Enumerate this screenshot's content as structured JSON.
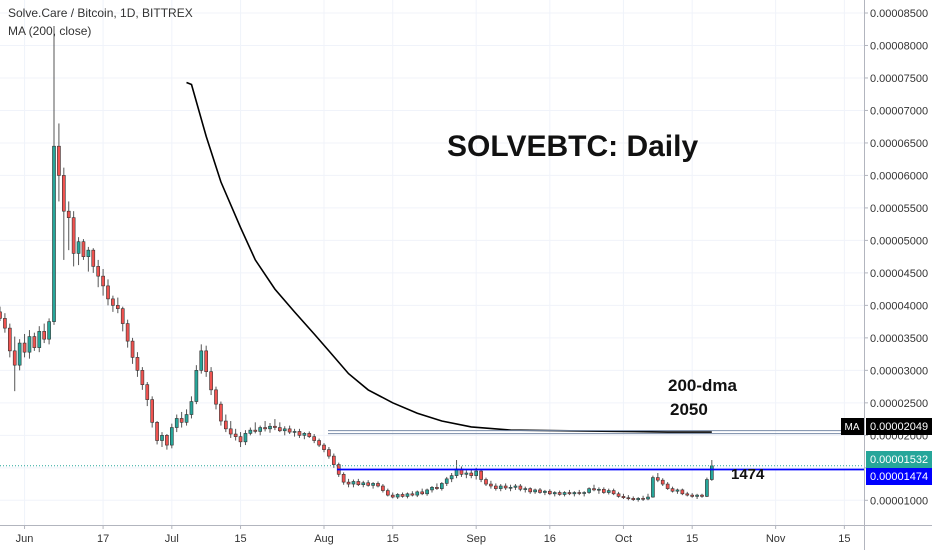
{
  "header": {
    "symbol": "Solve.Care / Bitcoin, 1D, BITTREX",
    "indicator": "MA (200, close)"
  },
  "annotations": {
    "title": "SOLVEBTC: Daily",
    "ma_label": "200-dma",
    "ma_value": "2050",
    "support_value": "1474"
  },
  "axis_badges": {
    "ma_tag": "MA",
    "ma_price": "0.00002049",
    "last_price": "0.00001532",
    "support_price": "0.00001474"
  },
  "colors": {
    "up": "#26a69a",
    "down": "#ef5350",
    "ma": "#000000",
    "support": "#0000ff",
    "grid": "#f0f3fa",
    "axis_text": "#333333"
  },
  "chart_data": {
    "type": "candlestick",
    "title": "SOLVEBTC: Daily",
    "x_ticks": [
      "Jun",
      "17",
      "Jul",
      "15",
      "Aug",
      "15",
      "Sep",
      "16",
      "Oct",
      "15",
      "Nov",
      "15"
    ],
    "y_ticks": [
      "0.00001000",
      "0.00001500",
      "0.00002000",
      "0.00002500",
      "0.00003000",
      "0.00003500",
      "0.00004000",
      "0.00004500",
      "0.00005000",
      "0.00005500",
      "0.00006000",
      "0.00006500",
      "0.00007000",
      "0.00007500",
      "0.00008000",
      "0.00008500"
    ],
    "ylim": [
      6.2e-06,
      8.7e-05
    ],
    "x_range": [
      "2019-05-27",
      "2019-11-19"
    ],
    "support_level": 1.474e-05,
    "ma_level": 2.049e-05,
    "last_price": 1.532e-05,
    "ma200": [
      [
        "2019-07-04",
        7.43e-05
      ],
      [
        "2019-07-05",
        7.4e-05
      ],
      [
        "2019-07-08",
        6.6e-05
      ],
      [
        "2019-07-11",
        5.9e-05
      ],
      [
        "2019-07-15",
        5.2e-05
      ],
      [
        "2019-07-18",
        4.7e-05
      ],
      [
        "2019-07-22",
        4.25e-05
      ],
      [
        "2019-07-26",
        3.9e-05
      ],
      [
        "2019-07-30",
        3.56e-05
      ],
      [
        "2019-08-02",
        3.3e-05
      ],
      [
        "2019-08-06",
        2.95e-05
      ],
      [
        "2019-08-10",
        2.7e-05
      ],
      [
        "2019-08-15",
        2.5e-05
      ],
      [
        "2019-08-20",
        2.34e-05
      ],
      [
        "2019-08-25",
        2.22e-05
      ],
      [
        "2019-08-31",
        2.13e-05
      ],
      [
        "2019-09-08",
        2.08e-05
      ],
      [
        "2019-09-20",
        2.07e-05
      ],
      [
        "2019-10-01",
        2.06e-05
      ],
      [
        "2019-10-10",
        2.05e-05
      ],
      [
        "2019-10-19",
        2.05e-05
      ]
    ],
    "candles_desc": "date, open, high, low, close",
    "candles": [
      [
        "2019-05-27",
        3.9e-05,
        3.98e-05,
        3.76e-05,
        3.8e-05
      ],
      [
        "2019-05-28",
        3.8e-05,
        3.88e-05,
        3.58e-05,
        3.65e-05
      ],
      [
        "2019-05-29",
        3.65e-05,
        3.72e-05,
        3.2e-05,
        3.3e-05
      ],
      [
        "2019-05-30",
        3.3e-05,
        3.52e-05,
        2.68e-05,
        3.08e-05
      ],
      [
        "2019-05-31",
        3.08e-05,
        3.48e-05,
        3e-05,
        3.42e-05
      ],
      [
        "2019-06-01",
        3.42e-05,
        3.56e-05,
        3.2e-05,
        3.28e-05
      ],
      [
        "2019-06-02",
        3.28e-05,
        3.62e-05,
        3.18e-05,
        3.52e-05
      ],
      [
        "2019-06-03",
        3.52e-05,
        3.58e-05,
        3.3e-05,
        3.35e-05
      ],
      [
        "2019-06-04",
        3.35e-05,
        3.68e-05,
        3.28e-05,
        3.6e-05
      ],
      [
        "2019-06-05",
        3.6e-05,
        3.72e-05,
        3.42e-05,
        3.48e-05
      ],
      [
        "2019-06-06",
        3.48e-05,
        3.8e-05,
        3.4e-05,
        3.75e-05
      ],
      [
        "2019-06-07",
        3.75e-05,
        8.3e-05,
        3.7e-05,
        6.45e-05
      ],
      [
        "2019-06-08",
        6.45e-05,
        6.8e-05,
        5.6e-05,
        6e-05
      ],
      [
        "2019-06-09",
        6e-05,
        6.12e-05,
        4.7e-05,
        5.45e-05
      ],
      [
        "2019-06-10",
        5.45e-05,
        5.6e-05,
        4.85e-05,
        5.35e-05
      ],
      [
        "2019-06-11",
        5.35e-05,
        5.45e-05,
        4.6e-05,
        4.8e-05
      ],
      [
        "2019-06-12",
        4.8e-05,
        5.05e-05,
        4.62e-05,
        4.98e-05
      ],
      [
        "2019-06-13",
        4.98e-05,
        5.02e-05,
        4.7e-05,
        4.75e-05
      ],
      [
        "2019-06-14",
        4.75e-05,
        4.9e-05,
        4.52e-05,
        4.85e-05
      ],
      [
        "2019-06-15",
        4.85e-05,
        4.88e-05,
        4.5e-05,
        4.6e-05
      ],
      [
        "2019-06-16",
        4.6e-05,
        4.7e-05,
        4.28e-05,
        4.45e-05
      ],
      [
        "2019-06-17",
        4.45e-05,
        4.56e-05,
        4.15e-05,
        4.3e-05
      ],
      [
        "2019-06-18",
        4.3e-05,
        4.4e-05,
        4e-05,
        4.1e-05
      ],
      [
        "2019-06-19",
        4.1e-05,
        4.15e-05,
        3.9e-05,
        4e-05
      ],
      [
        "2019-06-20",
        4e-05,
        4.12e-05,
        3.88e-05,
        3.95e-05
      ],
      [
        "2019-06-21",
        3.95e-05,
        3.98e-05,
        3.6e-05,
        3.72e-05
      ],
      [
        "2019-06-22",
        3.72e-05,
        3.78e-05,
        3.35e-05,
        3.45e-05
      ],
      [
        "2019-06-23",
        3.45e-05,
        3.5e-05,
        3.1e-05,
        3.2e-05
      ],
      [
        "2019-06-24",
        3.2e-05,
        3.28e-05,
        2.9e-05,
        3e-05
      ],
      [
        "2019-06-25",
        3e-05,
        3.05e-05,
        2.7e-05,
        2.78e-05
      ],
      [
        "2019-06-26",
        2.78e-05,
        2.82e-05,
        2.45e-05,
        2.55e-05
      ],
      [
        "2019-06-27",
        2.55e-05,
        2.6e-05,
        2.12e-05,
        2.2e-05
      ],
      [
        "2019-06-28",
        2.2e-05,
        2.22e-05,
        1.86e-05,
        1.92e-05
      ],
      [
        "2019-06-29",
        1.92e-05,
        2.05e-05,
        1.82e-05,
        2e-05
      ],
      [
        "2019-06-30",
        2e-05,
        2.02e-05,
        1.78e-05,
        1.85e-05
      ],
      [
        "2019-07-01",
        1.85e-05,
        2.18e-05,
        1.8e-05,
        2.12e-05
      ],
      [
        "2019-07-02",
        2.12e-05,
        2.32e-05,
        2.05e-05,
        2.26e-05
      ],
      [
        "2019-07-03",
        2.26e-05,
        2.36e-05,
        2.12e-05,
        2.2e-05
      ],
      [
        "2019-07-04",
        2.2e-05,
        2.4e-05,
        2.15e-05,
        2.32e-05
      ],
      [
        "2019-07-05",
        2.32e-05,
        2.6e-05,
        2.26e-05,
        2.52e-05
      ],
      [
        "2019-07-06",
        2.52e-05,
        3.08e-05,
        2.48e-05,
        3e-05
      ],
      [
        "2019-07-07",
        3e-05,
        3.4e-05,
        2.95e-05,
        3.3e-05
      ],
      [
        "2019-07-08",
        3.3e-05,
        3.38e-05,
        2.9e-05,
        2.98e-05
      ],
      [
        "2019-07-09",
        2.98e-05,
        3.05e-05,
        2.62e-05,
        2.7e-05
      ],
      [
        "2019-07-10",
        2.7e-05,
        2.75e-05,
        2.4e-05,
        2.48e-05
      ],
      [
        "2019-07-11",
        2.48e-05,
        2.52e-05,
        2.15e-05,
        2.22e-05
      ],
      [
        "2019-07-12",
        2.22e-05,
        2.32e-05,
        2.05e-05,
        2.1e-05
      ],
      [
        "2019-07-13",
        2.1e-05,
        2.22e-05,
        1.96e-05,
        2.02e-05
      ],
      [
        "2019-07-14",
        2.02e-05,
        2.1e-05,
        1.92e-05,
        1.98e-05
      ],
      [
        "2019-07-15",
        1.98e-05,
        2.05e-05,
        1.82e-05,
        1.9e-05
      ],
      [
        "2019-07-16",
        1.9e-05,
        2.08e-05,
        1.85e-05,
        2.03e-05
      ],
      [
        "2019-07-17",
        2.03e-05,
        2.12e-05,
        2e-05,
        2.08e-05
      ],
      [
        "2019-07-18",
        2.08e-05,
        2.2e-05,
        2.03e-05,
        2.06e-05
      ],
      [
        "2019-07-19",
        2.06e-05,
        2.15e-05,
        2e-05,
        2.12e-05
      ],
      [
        "2019-07-20",
        2.12e-05,
        2.22e-05,
        2.06e-05,
        2.1e-05
      ],
      [
        "2019-07-21",
        2.1e-05,
        2.19e-05,
        2.04e-05,
        2.14e-05
      ],
      [
        "2019-07-22",
        2.14e-05,
        2.25e-05,
        2.08e-05,
        2.12e-05
      ],
      [
        "2019-07-23",
        2.12e-05,
        2.2e-05,
        2.05e-05,
        2.07e-05
      ],
      [
        "2019-07-24",
        2.07e-05,
        2.14e-05,
        2e-05,
        2.1e-05
      ],
      [
        "2019-07-25",
        2.1e-05,
        2.15e-05,
        2.02e-05,
        2.05e-05
      ],
      [
        "2019-07-26",
        2.05e-05,
        2.1e-05,
        1.98e-05,
        2.06e-05
      ],
      [
        "2019-07-27",
        2.06e-05,
        2.1e-05,
        1.96e-05,
        2e-05
      ],
      [
        "2019-07-28",
        2e-05,
        2.05e-05,
        1.94e-05,
        2.03e-05
      ],
      [
        "2019-07-29",
        2.03e-05,
        2.06e-05,
        1.96e-05,
        1.98e-05
      ],
      [
        "2019-07-30",
        1.98e-05,
        2.02e-05,
        1.88e-05,
        1.92e-05
      ],
      [
        "2019-07-31",
        1.92e-05,
        1.95e-05,
        1.82e-05,
        1.85e-05
      ],
      [
        "2019-08-01",
        1.85e-05,
        1.88e-05,
        1.74e-05,
        1.78e-05
      ],
      [
        "2019-08-02",
        1.78e-05,
        1.82e-05,
        1.64e-05,
        1.68e-05
      ],
      [
        "2019-08-03",
        1.68e-05,
        1.72e-05,
        1.5e-05,
        1.55e-05
      ],
      [
        "2019-08-04",
        1.55e-05,
        1.58e-05,
        1.36e-05,
        1.4e-05
      ],
      [
        "2019-08-05",
        1.4e-05,
        1.43e-05,
        1.24e-05,
        1.28e-05
      ],
      [
        "2019-08-06",
        1.28e-05,
        1.33e-05,
        1.2e-05,
        1.25e-05
      ],
      [
        "2019-08-07",
        1.25e-05,
        1.32e-05,
        1.2e-05,
        1.29e-05
      ],
      [
        "2019-08-08",
        1.29e-05,
        1.33e-05,
        1.22e-05,
        1.24e-05
      ],
      [
        "2019-08-09",
        1.24e-05,
        1.3e-05,
        1.2e-05,
        1.27e-05
      ],
      [
        "2019-08-10",
        1.27e-05,
        1.31e-05,
        1.21e-05,
        1.23e-05
      ],
      [
        "2019-08-11",
        1.23e-05,
        1.28e-05,
        1.18e-05,
        1.26e-05
      ],
      [
        "2019-08-12",
        1.26e-05,
        1.29e-05,
        1.2e-05,
        1.22e-05
      ],
      [
        "2019-08-13",
        1.22e-05,
        1.25e-05,
        1.12e-05,
        1.15e-05
      ],
      [
        "2019-08-14",
        1.15e-05,
        1.18e-05,
        1.06e-05,
        1.08e-05
      ],
      [
        "2019-08-15",
        1.08e-05,
        1.12e-05,
        1.03e-05,
        1.05e-05
      ],
      [
        "2019-08-16",
        1.05e-05,
        1.11e-05,
        1.02e-05,
        1.09e-05
      ],
      [
        "2019-08-17",
        1.09e-05,
        1.12e-05,
        1.04e-05,
        1.06e-05
      ],
      [
        "2019-08-18",
        1.06e-05,
        1.12e-05,
        1.03e-05,
        1.1e-05
      ],
      [
        "2019-08-19",
        1.1e-05,
        1.14e-05,
        1.06e-05,
        1.08e-05
      ],
      [
        "2019-08-20",
        1.08e-05,
        1.15e-05,
        1.05e-05,
        1.13e-05
      ],
      [
        "2019-08-21",
        1.13e-05,
        1.18e-05,
        1.08e-05,
        1.1e-05
      ],
      [
        "2019-08-22",
        1.1e-05,
        1.18e-05,
        1.07e-05,
        1.16e-05
      ],
      [
        "2019-08-23",
        1.16e-05,
        1.22e-05,
        1.12e-05,
        1.2e-05
      ],
      [
        "2019-08-24",
        1.2e-05,
        1.26e-05,
        1.16e-05,
        1.18e-05
      ],
      [
        "2019-08-25",
        1.18e-05,
        1.28e-05,
        1.15e-05,
        1.26e-05
      ],
      [
        "2019-08-26",
        1.26e-05,
        1.36e-05,
        1.22e-05,
        1.33e-05
      ],
      [
        "2019-08-27",
        1.33e-05,
        1.42e-05,
        1.28e-05,
        1.38e-05
      ],
      [
        "2019-08-28",
        1.38e-05,
        1.62e-05,
        1.34e-05,
        1.48e-05
      ],
      [
        "2019-08-29",
        1.48e-05,
        1.52e-05,
        1.36e-05,
        1.4e-05
      ],
      [
        "2019-08-30",
        1.4e-05,
        1.46e-05,
        1.34e-05,
        1.42e-05
      ],
      [
        "2019-08-31",
        1.42e-05,
        1.48e-05,
        1.34e-05,
        1.38e-05
      ],
      [
        "2019-09-01",
        1.38e-05,
        1.5e-05,
        1.32e-05,
        1.45e-05
      ],
      [
        "2019-09-02",
        1.45e-05,
        1.47e-05,
        1.28e-05,
        1.32e-05
      ],
      [
        "2019-09-03",
        1.32e-05,
        1.35e-05,
        1.22e-05,
        1.25e-05
      ],
      [
        "2019-09-04",
        1.25e-05,
        1.3e-05,
        1.18e-05,
        1.22e-05
      ],
      [
        "2019-09-05",
        1.22e-05,
        1.26e-05,
        1.15e-05,
        1.18e-05
      ],
      [
        "2019-09-06",
        1.18e-05,
        1.25e-05,
        1.14e-05,
        1.22e-05
      ],
      [
        "2019-09-07",
        1.22e-05,
        1.26e-05,
        1.16e-05,
        1.19e-05
      ],
      [
        "2019-09-08",
        1.19e-05,
        1.24e-05,
        1.14e-05,
        1.2e-05
      ],
      [
        "2019-09-09",
        1.2e-05,
        1.25e-05,
        1.16e-05,
        1.22e-05
      ],
      [
        "2019-09-10",
        1.22e-05,
        1.25e-05,
        1.14e-05,
        1.17e-05
      ],
      [
        "2019-09-11",
        1.17e-05,
        1.21e-05,
        1.12e-05,
        1.18e-05
      ],
      [
        "2019-09-12",
        1.18e-05,
        1.2e-05,
        1.1e-05,
        1.13e-05
      ],
      [
        "2019-09-13",
        1.13e-05,
        1.18e-05,
        1.1e-05,
        1.16e-05
      ],
      [
        "2019-09-14",
        1.16e-05,
        1.19e-05,
        1.1e-05,
        1.12e-05
      ],
      [
        "2019-09-15",
        1.12e-05,
        1.16e-05,
        1.08e-05,
        1.14e-05
      ],
      [
        "2019-09-16",
        1.14e-05,
        1.17e-05,
        1.08e-05,
        1.1e-05
      ],
      [
        "2019-09-17",
        1.1e-05,
        1.14e-05,
        1.06e-05,
        1.12e-05
      ],
      [
        "2019-09-18",
        1.12e-05,
        1.15e-05,
        1.07e-05,
        1.09e-05
      ],
      [
        "2019-09-19",
        1.09e-05,
        1.14e-05,
        1.06e-05,
        1.12e-05
      ],
      [
        "2019-09-20",
        1.12e-05,
        1.16e-05,
        1.08e-05,
        1.1e-05
      ],
      [
        "2019-09-21",
        1.1e-05,
        1.14e-05,
        1.06e-05,
        1.12e-05
      ],
      [
        "2019-09-22",
        1.12e-05,
        1.16e-05,
        1.08e-05,
        1.11e-05
      ],
      [
        "2019-09-23",
        1.11e-05,
        1.14e-05,
        1.06e-05,
        1.12e-05
      ],
      [
        "2019-09-24",
        1.12e-05,
        1.2e-05,
        1.1e-05,
        1.18e-05
      ],
      [
        "2019-09-25",
        1.18e-05,
        1.24e-05,
        1.14e-05,
        1.16e-05
      ],
      [
        "2019-09-26",
        1.16e-05,
        1.2e-05,
        1.1e-05,
        1.17e-05
      ],
      [
        "2019-09-27",
        1.17e-05,
        1.2e-05,
        1.1e-05,
        1.12e-05
      ],
      [
        "2019-09-28",
        1.12e-05,
        1.18e-05,
        1.09e-05,
        1.15e-05
      ],
      [
        "2019-09-29",
        1.15e-05,
        1.18e-05,
        1.08e-05,
        1.1e-05
      ],
      [
        "2019-09-30",
        1.1e-05,
        1.13e-05,
        1.04e-05,
        1.06e-05
      ],
      [
        "2019-10-01",
        1.06e-05,
        1.1e-05,
        1.02e-05,
        1.04e-05
      ],
      [
        "2019-10-02",
        1.04e-05,
        1.08e-05,
        1e-05,
        1.03e-05
      ],
      [
        "2019-10-03",
        1.03e-05,
        1.06e-05,
        9.9e-06,
        1.01e-05
      ],
      [
        "2019-10-04",
        1.01e-05,
        1.05e-05,
        9.8e-06,
        1.03e-05
      ],
      [
        "2019-10-05",
        1.03e-05,
        1.07e-05,
        9.9e-06,
        1.02e-05
      ],
      [
        "2019-10-06",
        1.02e-05,
        1.1e-05,
        1e-05,
        1.05e-05
      ],
      [
        "2019-10-07",
        1.05e-05,
        1.38e-05,
        1.04e-05,
        1.35e-05
      ],
      [
        "2019-10-08",
        1.35e-05,
        1.42e-05,
        1.28e-05,
        1.31e-05
      ],
      [
        "2019-10-09",
        1.31e-05,
        1.34e-05,
        1.22e-05,
        1.25e-05
      ],
      [
        "2019-10-10",
        1.25e-05,
        1.28e-05,
        1.16e-05,
        1.18e-05
      ],
      [
        "2019-10-11",
        1.18e-05,
        1.21e-05,
        1.12e-05,
        1.14e-05
      ],
      [
        "2019-10-12",
        1.14e-05,
        1.18e-05,
        1.1e-05,
        1.16e-05
      ],
      [
        "2019-10-13",
        1.16e-05,
        1.18e-05,
        1.08e-05,
        1.1e-05
      ],
      [
        "2019-10-14",
        1.1e-05,
        1.13e-05,
        1.06e-05,
        1.08e-05
      ],
      [
        "2019-10-15",
        1.08e-05,
        1.11e-05,
        1.04e-05,
        1.06e-05
      ],
      [
        "2019-10-16",
        1.06e-05,
        1.1e-05,
        1.02e-05,
        1.08e-05
      ],
      [
        "2019-10-17",
        1.08e-05,
        1.1e-05,
        1.04e-05,
        1.06e-05
      ],
      [
        "2019-10-18",
        1.06e-05,
        1.35e-05,
        1.05e-05,
        1.32e-05
      ],
      [
        "2019-10-19",
        1.32e-05,
        1.62e-05,
        1.3e-05,
        1.53e-05
      ]
    ]
  }
}
